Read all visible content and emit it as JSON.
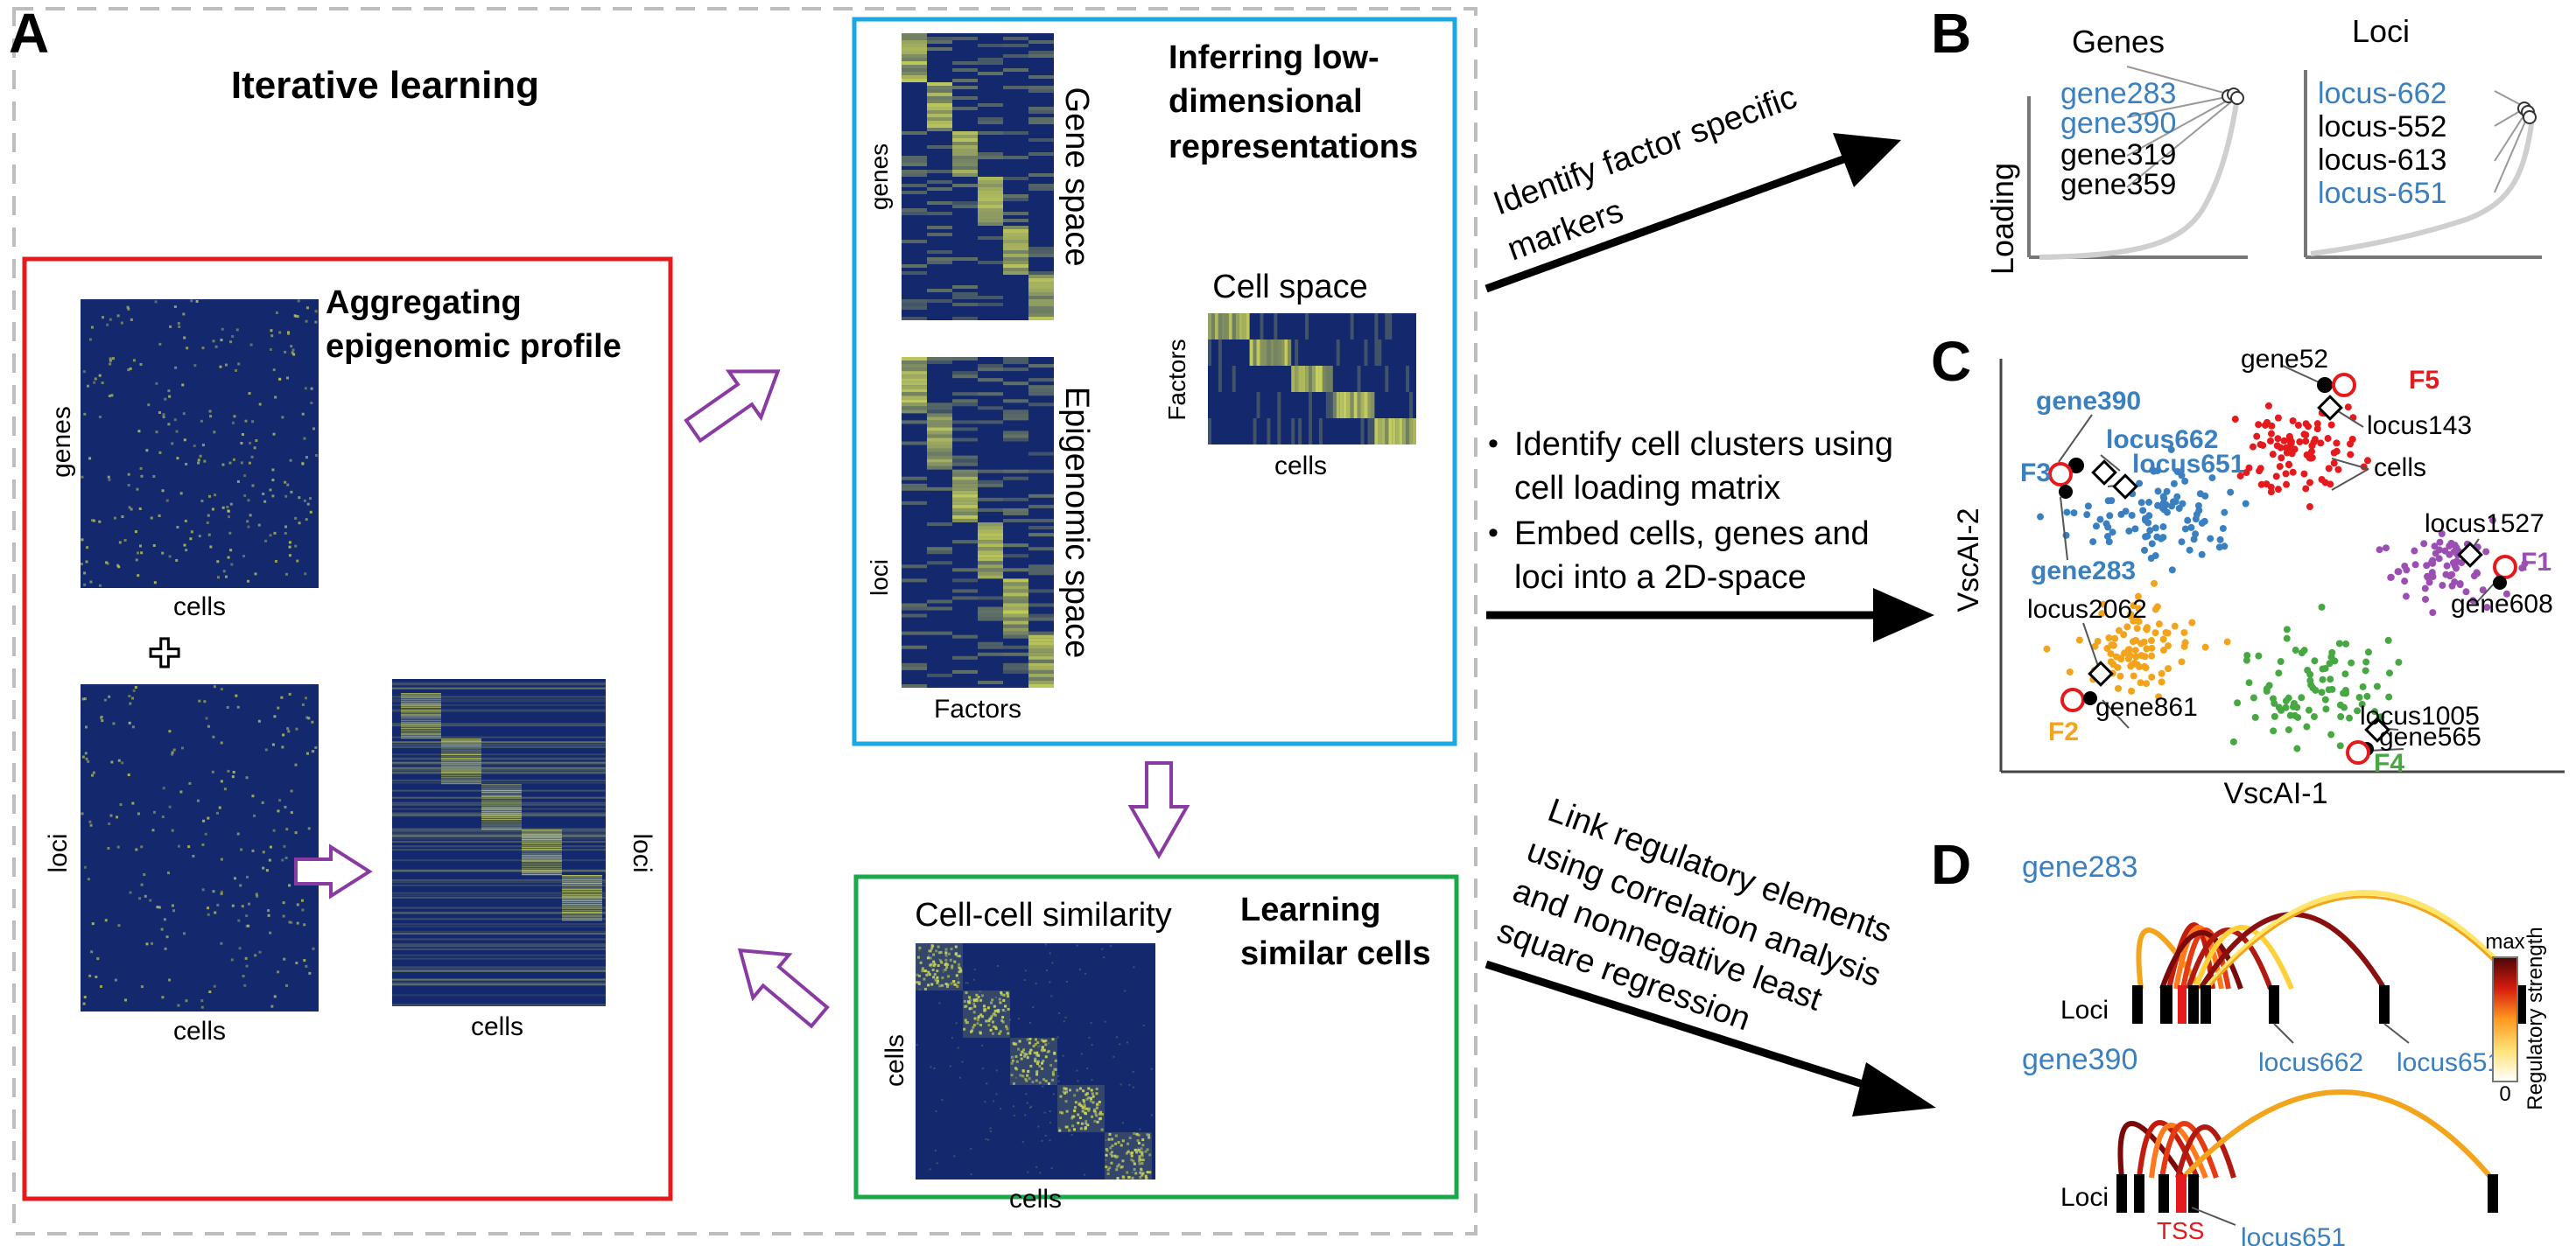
{
  "panels": {
    "a": "A",
    "b": "B",
    "c": "C",
    "d": "D"
  },
  "colors": {
    "heatmap_bg": "#14286e",
    "heatmap_block": "#c8d25a",
    "red_box": "#e41a1c",
    "blue_box": "#1aa7e4",
    "green_box": "#1aa84b",
    "purple_arrow": "#8a3aa3",
    "gene_blue": "#3a7fbf",
    "orange": "#f2a41c",
    "purple": "#9b4fb3",
    "green": "#47a843",
    "red": "#e41a1c"
  },
  "panel_a": {
    "title": "Iterative learning",
    "aggregating": {
      "line1": "Aggregating",
      "line2": "epigenomic profile"
    },
    "genes_label": "genes",
    "cells_label": "cells",
    "loci_label": "loci",
    "plus_symbol": "✚",
    "inferring": {
      "line1": "Inferring low-",
      "line2": "dimensional",
      "line3": "representations"
    },
    "gene_space": "Gene space",
    "epigenomic_space": "Epigenomic space",
    "factors": "Factors",
    "cell_space": "Cell  space",
    "cell_sim_title": "Cell-cell similarity",
    "learning": {
      "line1": "Learning",
      "line2": "similar cells"
    }
  },
  "arrows_text": {
    "markers": {
      "line1": "Identify factor specific",
      "line2": "markers"
    },
    "clusters": {
      "line1": "Identify cell clusters using",
      "line2": "cell loading matrix",
      "line3": "Embed cells, genes and",
      "line4": "loci into a 2D-space",
      "bullet": "•"
    },
    "link": {
      "line1": "Link regulatory elements",
      "line2": "using correlation analysis",
      "line3": "and  nonnegative least",
      "line4": "square regression"
    }
  },
  "panel_b": {
    "genes_title": "Genes",
    "loci_title": "Loci",
    "ylabel": "Loading",
    "genes": [
      {
        "label": "gene283",
        "highlight": true
      },
      {
        "label": "gene390",
        "highlight": true
      },
      {
        "label": "gene319",
        "highlight": false
      },
      {
        "label": "gene359",
        "highlight": false
      }
    ],
    "loci": [
      {
        "label": "locus-662",
        "highlight": true
      },
      {
        "label": "locus-552",
        "highlight": false
      },
      {
        "label": "locus-613",
        "highlight": false
      },
      {
        "label": "locus-651",
        "highlight": true
      }
    ]
  },
  "panel_c": {
    "xlabel": "VscAI-1",
    "ylabel": "VscAI-2",
    "labels": {
      "gene52": "gene52",
      "F5": "F5",
      "locus143": "locus143",
      "cells": "cells",
      "gene390": "gene390",
      "locus662": "locus662",
      "locus651": "locus651",
      "F3": "F3",
      "gene283": "gene283",
      "locus1527": "locus1527",
      "F1": "F1",
      "gene608": "gene608",
      "locus2062": "locus2062",
      "F2": "F2",
      "gene861": "gene861",
      "locus1005": "locus1005",
      "gene565": "gene565",
      "F4": "F4"
    }
  },
  "panel_d": {
    "gene283": "gene283",
    "gene390": "gene390",
    "loci": "Loci",
    "locus662": "locus662",
    "locus651_top": "locus651",
    "locus651_bottom": "locus651",
    "tss": "TSS",
    "colorbar_max": "max",
    "colorbar_min": "0",
    "colorbar_label": "Regulatory strength"
  }
}
